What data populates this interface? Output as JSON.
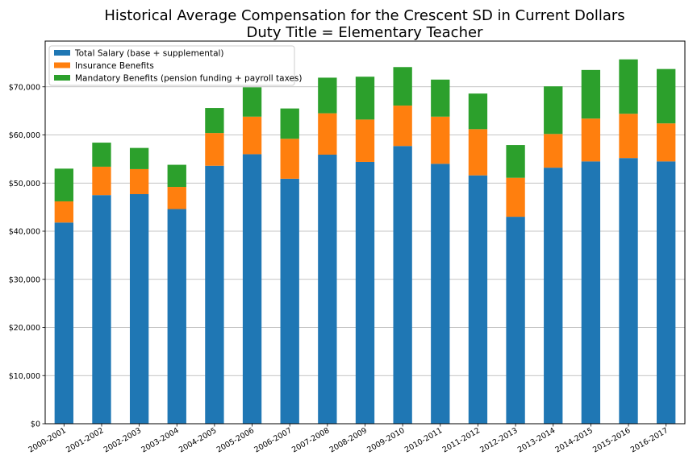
{
  "chart_data": {
    "type": "bar",
    "stacked": true,
    "title": [
      "Historical Average Compensation for the Crescent SD in Current Dollars",
      "Duty Title = Elementary Teacher"
    ],
    "xlabel": "",
    "ylabel": "",
    "categories": [
      "2000-2001",
      "2001-2002",
      "2002-2003",
      "2003-2004",
      "2004-2005",
      "2005-2006",
      "2006-2007",
      "2007-2008",
      "2008-2009",
      "2009-2010",
      "2010-2011",
      "2011-2012",
      "2012-2013",
      "2013-2014",
      "2014-2015",
      "2015-2016",
      "2016-2017"
    ],
    "series": [
      {
        "name": "Total Salary (base + supplemental)",
        "color": "#1f77b4",
        "values": [
          41800,
          47500,
          47700,
          44600,
          53600,
          56000,
          50900,
          55900,
          54400,
          57700,
          54000,
          51600,
          43000,
          53200,
          54500,
          55200,
          54500
        ]
      },
      {
        "name": "Insurance Benefits",
        "color": "#ff7f0e",
        "values": [
          4400,
          5900,
          5200,
          4600,
          6800,
          7800,
          8300,
          8600,
          8800,
          8400,
          9800,
          9600,
          8100,
          7000,
          8900,
          9200,
          7900
        ]
      },
      {
        "name": "Mandatory Benefits (pension funding + payroll taxes)",
        "color": "#2ca02c",
        "values": [
          6800,
          5000,
          4400,
          4600,
          5200,
          6100,
          6300,
          7400,
          8900,
          8000,
          7700,
          7400,
          6800,
          9900,
          10100,
          11300,
          11300
        ]
      }
    ],
    "ylim": [
      0,
      79500
    ],
    "yticks": [
      0,
      10000,
      20000,
      30000,
      40000,
      50000,
      60000,
      70000
    ],
    "ytick_labels": [
      "$0",
      "$10,000",
      "$20,000",
      "$30,000",
      "$40,000",
      "$50,000",
      "$60,000",
      "$70,000"
    ],
    "grid": "y",
    "legend_position": "top-left"
  }
}
